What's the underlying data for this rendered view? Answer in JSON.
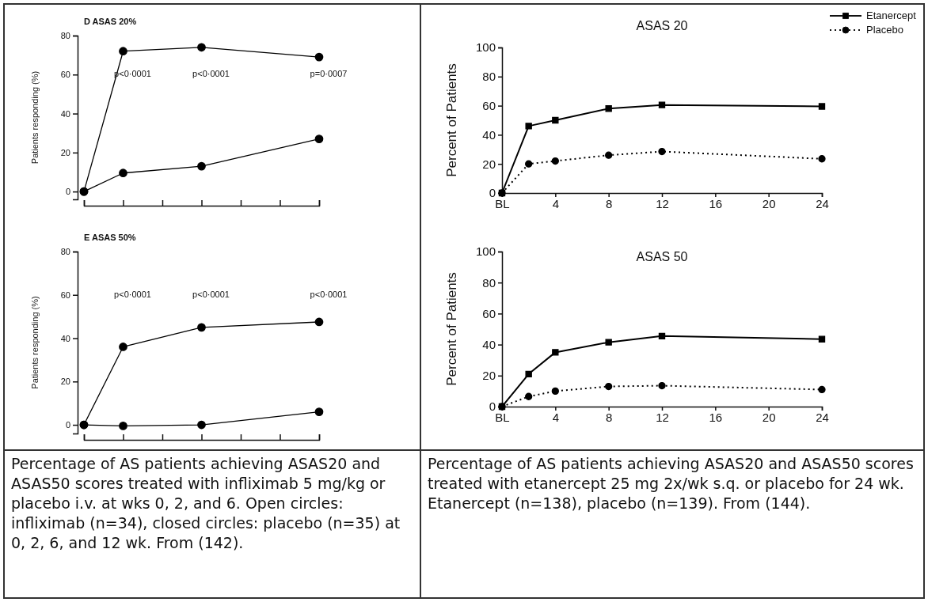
{
  "chart_data": [
    {
      "type": "line",
      "title": "D ASAS 20%",
      "ylabel": "Patients responding (%)",
      "categories": [
        null,
        null,
        null,
        null,
        null,
        null,
        null
      ],
      "ylim": [
        -4,
        80
      ],
      "yticks": [
        0,
        20,
        40,
        60,
        80
      ],
      "tick_labels": "y",
      "grid": false,
      "legend": false,
      "line_style": "solid",
      "series": [
        {
          "color": "#000000",
          "marker": "circle",
          "values": [
            0,
            72,
            null,
            74,
            null,
            null,
            69
          ]
        },
        {
          "color": "#000000",
          "marker": "circle",
          "values": [
            0,
            9.5,
            null,
            13,
            null,
            null,
            27
          ]
        }
      ],
      "annotations": [
        "p<0·0001",
        "p<0·0001",
        "p=0·0007"
      ]
    },
    {
      "type": "line",
      "title": "E ASAS 50%",
      "ylabel": "Patients responding (%)",
      "categories": [
        null,
        null,
        null,
        null,
        null,
        null,
        null
      ],
      "ylim": [
        -4,
        80
      ],
      "yticks": [
        0,
        20,
        40,
        60,
        80
      ],
      "tick_labels": "y",
      "grid": false,
      "legend": false,
      "line_style": "solid",
      "series": [
        {
          "color": "#000000",
          "marker": "circle",
          "values": [
            0,
            36,
            null,
            45,
            null,
            null,
            47.5
          ]
        },
        {
          "color": "#000000",
          "marker": "circle",
          "values": [
            0,
            -0.5,
            null,
            0,
            null,
            null,
            6
          ]
        }
      ],
      "annotations": [
        "p<0·0001",
        "p<0·0001",
        "p<0·0001",
        "Percentage of AS patients achieving ASAS20 and ASAS50 scores treated with infliximab 5 mg/kg or placebo i.v. at wks 0, 2, and 6.  Open circles: infliximab (n=34), closed circles: placebo (n=35) at 0, 2, 6, and 12 wk.  From (142)."
      ]
    },
    {
      "type": "line",
      "title": "ASAS 20",
      "ylabel": "Percent of Patients",
      "x": [
        0,
        2,
        4,
        8,
        12,
        24
      ],
      "xlim": [
        0,
        24
      ],
      "xticks": [
        {
          "value": 0,
          "label": "BL"
        },
        4,
        8,
        12,
        16,
        20,
        24
      ],
      "ylim": [
        0,
        100
      ],
      "yticks": [
        0,
        20,
        40,
        60,
        80,
        100
      ],
      "grid": false,
      "legend": "top right",
      "series": [
        {
          "name": "Etanercept",
          "color": "#000000",
          "marker": "square",
          "line_style": "solid",
          "values": [
            0,
            46,
            50,
            58,
            60.5,
            59.5
          ]
        },
        {
          "name": "Placebo",
          "color": "#000000",
          "marker": "circle",
          "line_style": "dotted",
          "values": [
            0,
            20,
            22,
            26,
            28.5,
            23.5
          ]
        }
      ]
    },
    {
      "type": "line",
      "title": "ASAS 50",
      "ylabel": "Percent of Patients",
      "x": [
        0,
        2,
        4,
        8,
        12,
        24
      ],
      "xlim": [
        0,
        24
      ],
      "xticks": [
        {
          "value": 0,
          "label": "BL"
        },
        4,
        8,
        12,
        16,
        20,
        24
      ],
      "ylim": [
        0,
        100
      ],
      "yticks": [
        0,
        20,
        40,
        60,
        80,
        100
      ],
      "grid": false,
      "legend": false,
      "series": [
        {
          "color": "#000000",
          "marker": "square",
          "line_style": "solid",
          "values": [
            0,
            21,
            35,
            41.5,
            45.5,
            43.5
          ]
        },
        {
          "color": "#000000",
          "marker": "circle",
          "line_style": "dotted",
          "values": [
            0,
            6.5,
            10,
            13,
            13.5,
            11
          ]
        }
      ],
      "annotations": [
        "Percentage of AS patients achieving ASAS20 and ASAS50 scores treated with etanercept 25 mg 2x/wk s.q. or placebo for 24 wk. Etanercept (n=138), placebo (n=139).  From (144)."
      ]
    }
  ]
}
